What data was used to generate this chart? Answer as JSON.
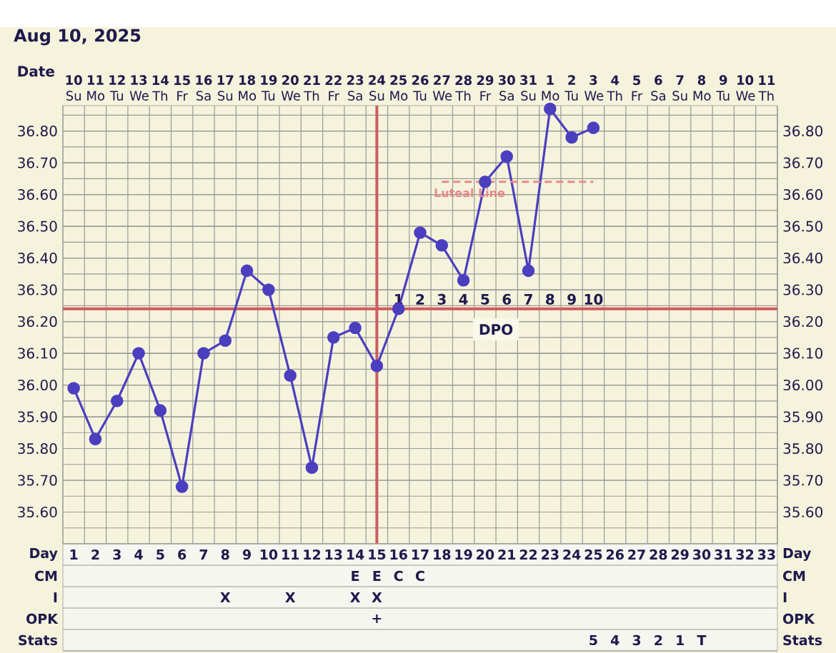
{
  "chart_data": [
    {
      "type": "line",
      "title": "Aug 10, 2025",
      "xlabel": "Date",
      "categories": [
        "**10** Su",
        "**11** Mo",
        "**12** Tu",
        "**13** We",
        "**14** Th",
        "**15** Fr",
        "**16** Sa",
        "**17** Su",
        "**18** Mo",
        "**19** Tu",
        "**20** We",
        "**21** Th",
        "**22** Fr",
        "**23** Sa",
        "**24** Su",
        "**25** Mo",
        "**26** Tu",
        "**27** We",
        "**28** Th",
        "**29** Fr",
        "**30** Sa",
        "**31** Su",
        "**1** Mo",
        "**2** Tu",
        "**3** We",
        "**4** Th",
        "**5** Fr",
        "**6** Sa",
        "**7** Su",
        "**8** Mo",
        "**9** Tu",
        "**10** We",
        "**11** Th"
      ],
      "series": [
        {
          "color": "#4b3fc0",
          "marker": "circle",
          "values": [
            35.99,
            35.83,
            35.95,
            36.1,
            35.92,
            35.68,
            36.1,
            36.14,
            36.36,
            36.3,
            36.03,
            35.74,
            36.15,
            36.18,
            36.06,
            36.24,
            36.48,
            36.44,
            36.33,
            36.64,
            36.72,
            36.36,
            36.87,
            36.78,
            36.81,
            null,
            null,
            null,
            null,
            null,
            null,
            null,
            null
          ]
        },
        {
          "name": "Luteal Line",
          "color": "#e68a8a",
          "marker": "none",
          "line_style": "dashed",
          "values": [
            null,
            null,
            null,
            null,
            null,
            null,
            null,
            null,
            null,
            null,
            null,
            null,
            null,
            null,
            null,
            null,
            null,
            36.64,
            36.64,
            36.64,
            36.64,
            36.64,
            36.64,
            36.64,
            36.64,
            null,
            null,
            null,
            null,
            null,
            null,
            null,
            null
          ]
        }
      ],
      "ylim": [
        35.5,
        36.88
      ],
      "yticks": [
        {
          "value": 35.6,
          "label": "35.60"
        },
        {
          "value": 35.7,
          "label": "35.70"
        },
        {
          "value": 35.8,
          "label": "35.80"
        },
        {
          "value": 35.9,
          "label": "35.90"
        },
        {
          "value": 36.0,
          "label": "36.00"
        },
        {
          "value": 36.1,
          "label": "36.10"
        },
        {
          "value": 36.2,
          "label": "36.20"
        },
        {
          "value": 36.3,
          "label": "36.30"
        },
        {
          "value": 36.4,
          "label": "36.40"
        },
        {
          "value": 36.5,
          "label": "36.50"
        },
        {
          "value": 36.6,
          "label": "36.60"
        },
        {
          "value": 36.7,
          "label": "36.70"
        },
        {
          "value": 36.8,
          "label": "36.80"
        }
      ],
      "y2lim": [
        35.5,
        36.88
      ],
      "y2ticks": [
        {
          "value": 35.6,
          "label": "35.60"
        },
        {
          "value": 35.7,
          "label": "35.70"
        },
        {
          "value": 35.8,
          "label": "35.80"
        },
        {
          "value": 35.9,
          "label": "35.90"
        },
        {
          "value": 36.0,
          "label": "36.00"
        },
        {
          "value": 36.1,
          "label": "36.10"
        },
        {
          "value": 36.2,
          "label": "36.20"
        },
        {
          "value": 36.3,
          "label": "36.30"
        },
        {
          "value": 36.4,
          "label": "36.40"
        },
        {
          "value": 36.5,
          "label": "36.50"
        },
        {
          "value": 36.6,
          "label": "36.60"
        },
        {
          "value": 36.7,
          "label": "36.70"
        },
        {
          "value": 36.8,
          "label": "36.80"
        }
      ],
      "ref_lines": [
        {
          "axis": "y",
          "value": 36.24,
          "color": "#cd5c5c"
        },
        {
          "axis": "x",
          "value": "**24** Su",
          "color": "#cd5c5c"
        }
      ],
      "annotations": [
        "1",
        "2",
        "3",
        "4",
        "5",
        "6",
        "7",
        "8",
        "9",
        "10",
        "DPO"
      ],
      "grid": true
    },
    {
      "type": "heatmap",
      "categories": [
        null,
        null,
        null,
        null,
        null,
        null,
        null,
        null,
        null,
        null,
        null,
        null,
        null,
        null,
        null,
        null,
        null,
        null,
        null,
        null,
        null,
        null,
        null,
        null,
        null,
        null,
        null,
        null,
        null,
        null,
        null,
        null,
        null
      ],
      "y_categories": [
        "Day",
        "CM",
        "I",
        "OPK",
        "Stats"
      ],
      "y2_categories": [
        "Day",
        "CM",
        "I",
        "OPK",
        "Stats"
      ],
      "cells": [
        [
          null,
          null,
          null,
          null,
          null,
          null,
          null,
          null,
          null,
          null,
          null,
          null,
          null,
          null,
          null,
          null,
          null,
          null,
          null,
          null,
          null,
          null,
          null,
          null,
          null,
          null,
          null,
          null,
          null,
          null,
          null,
          null,
          null
        ],
        [
          null,
          null,
          null,
          null,
          null,
          null,
          null,
          null,
          null,
          null,
          null,
          null,
          null,
          null,
          null,
          null,
          null,
          null,
          null,
          null,
          null,
          null,
          null,
          null,
          null,
          null,
          null,
          null,
          null,
          null,
          null,
          null,
          null
        ],
        [
          null,
          null,
          null,
          null,
          null,
          null,
          null,
          null,
          null,
          null,
          null,
          null,
          null,
          null,
          null,
          null,
          null,
          null,
          null,
          null,
          null,
          null,
          null,
          null,
          null,
          null,
          null,
          null,
          null,
          null,
          null,
          null,
          null
        ],
        [
          null,
          null,
          null,
          null,
          null,
          null,
          null,
          null,
          null,
          null,
          null,
          null,
          null,
          null,
          null,
          null,
          null,
          null,
          null,
          null,
          null,
          null,
          null,
          null,
          null,
          null,
          null,
          null,
          null,
          null,
          null,
          null,
          null
        ],
        [
          null,
          null,
          null,
          null,
          null,
          null,
          null,
          null,
          null,
          null,
          null,
          null,
          null,
          null,
          null,
          null,
          null,
          null,
          null,
          null,
          null,
          null,
          null,
          null,
          null,
          null,
          null,
          null,
          null,
          null,
          null,
          null,
          null
        ]
      ],
      "cell_labels": [
        [
          "1",
          "2",
          "3",
          "4",
          "5",
          "6",
          "7",
          "8",
          "9",
          "10",
          "11",
          "12",
          "13",
          "14",
          "15",
          "16",
          "17",
          "18",
          "19",
          "20",
          "21",
          "22",
          "23",
          "24",
          "25",
          "26",
          "27",
          "28",
          "29",
          "30",
          "31",
          "32",
          "33"
        ],
        [
          null,
          null,
          null,
          null,
          null,
          null,
          null,
          null,
          null,
          null,
          null,
          null,
          null,
          "E",
          "E",
          "C",
          "C",
          null,
          null,
          null,
          null,
          null,
          null,
          null,
          null,
          null,
          null,
          null,
          null,
          null,
          null,
          null,
          null
        ],
        [
          null,
          null,
          null,
          null,
          null,
          null,
          null,
          "X",
          null,
          null,
          "X",
          null,
          null,
          "X",
          "X",
          null,
          null,
          null,
          null,
          null,
          null,
          null,
          null,
          null,
          null,
          null,
          null,
          null,
          null,
          null,
          null,
          null,
          null
        ],
        [
          null,
          null,
          null,
          null,
          null,
          null,
          null,
          null,
          null,
          null,
          null,
          null,
          null,
          null,
          "+",
          null,
          null,
          null,
          null,
          null,
          null,
          null,
          null,
          null,
          null,
          null,
          null,
          null,
          null,
          null,
          null,
          null,
          null
        ],
        [
          null,
          null,
          null,
          null,
          null,
          null,
          null,
          null,
          null,
          null,
          null,
          null,
          null,
          null,
          null,
          null,
          null,
          null,
          null,
          null,
          null,
          null,
          null,
          null,
          "5",
          "4",
          "3",
          "2",
          "1",
          "T",
          null,
          null,
          null
        ]
      ],
      "grid": true
    }
  ]
}
